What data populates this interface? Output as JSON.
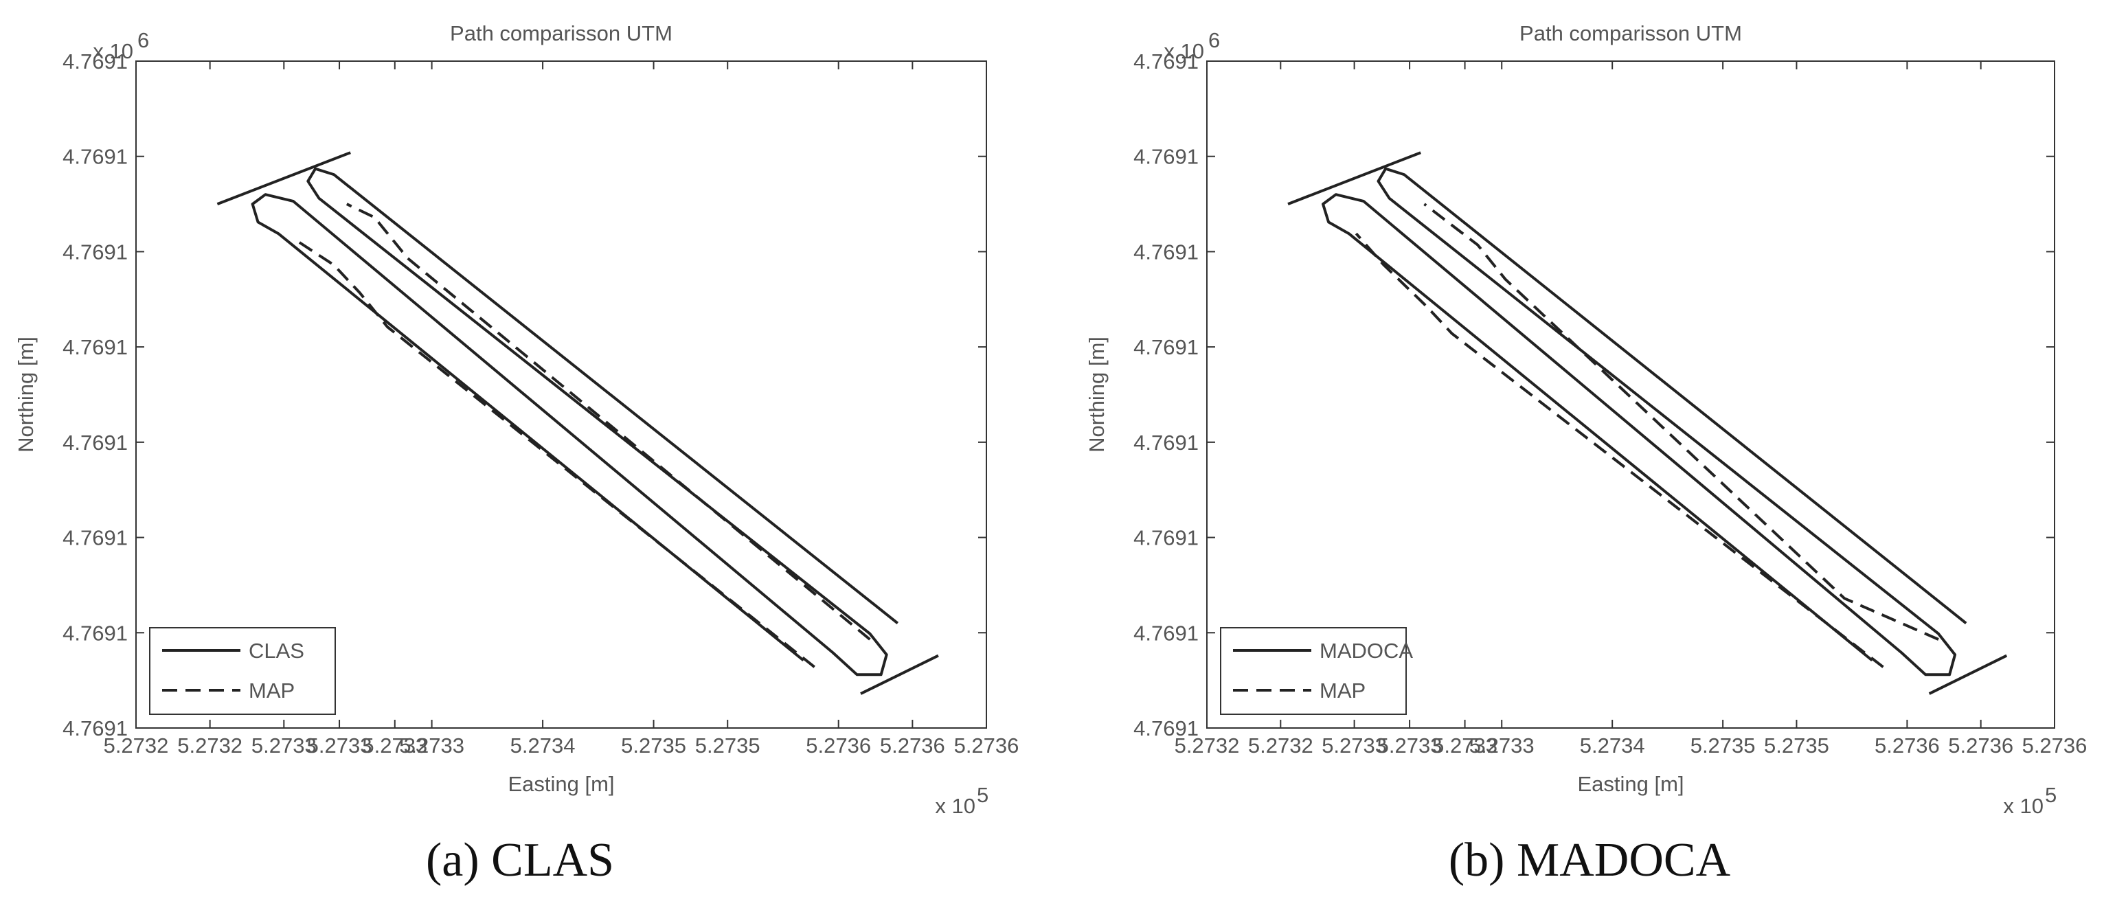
{
  "chart_data": [
    {
      "type": "line",
      "title": "Path comparisson UTM",
      "xlabel": "Easting [m]",
      "ylabel": "Northing [m]",
      "x_multiplier": "x 10",
      "x_exponent": "5",
      "y_multiplier": "x 10",
      "y_exponent": "6",
      "caption": "(a) CLAS",
      "legend": "lower left",
      "grid": false,
      "xlim": [
        5.27318,
        5.27364
      ],
      "ylim": [
        4.76906,
        4.76913
      ],
      "xticks": [
        {
          "value": 5.27318,
          "label": "5.2732"
        },
        {
          "value": 5.27322,
          "label": "5.2732"
        },
        {
          "value": 5.27326,
          "label": "5.2733"
        },
        {
          "value": 5.27329,
          "label": "5.2733"
        },
        {
          "value": 5.27332,
          "label": "5.2733"
        },
        {
          "value": 5.27334,
          "label": "5.2733"
        },
        {
          "value": 5.2734,
          "label": "5.2734"
        },
        {
          "value": 5.27346,
          "label": "5.2735"
        },
        {
          "value": 5.2735,
          "label": "5.2735"
        },
        {
          "value": 5.27356,
          "label": "5.2736"
        },
        {
          "value": 5.2736,
          "label": "5.2736"
        },
        {
          "value": 5.27364,
          "label": "5.2736"
        }
      ],
      "yticks": [
        {
          "value": 4.76906,
          "label": "4.7691"
        },
        {
          "value": 4.76907,
          "label": "4.7691"
        },
        {
          "value": 4.76908,
          "label": "4.7691"
        },
        {
          "value": 4.76909,
          "label": "4.7691"
        },
        {
          "value": 4.7691,
          "label": "4.7691"
        },
        {
          "value": 4.76911,
          "label": "4.7691"
        },
        {
          "value": 4.76912,
          "label": "4.7691"
        },
        {
          "value": 4.76913,
          "label": "4.7691"
        }
      ],
      "series": [
        {
          "name": "CLAS",
          "color": "#222222",
          "style": "solid",
          "x": [
            5.273592,
            5.273287,
            5.273277,
            5.273273,
            5.273279,
            5.273577,
            5.273586,
            5.273583,
            5.27357,
            5.273557,
            5.273265,
            5.27325,
            5.273243,
            5.273246,
            5.273257,
            5.273541,
            null,
            5.273224,
            5.273296,
            null,
            5.273572,
            5.273614
          ],
          "y": [
            4.769071,
            4.7691181,
            4.7691187,
            4.7691174,
            4.7691156,
            4.7690699,
            4.7690677,
            4.7690656,
            4.7690656,
            4.7690679,
            4.7691153,
            4.769116,
            4.769115,
            4.7691131,
            4.7691119,
            4.7690671,
            null,
            4.769115,
            4.7691204,
            null,
            4.7690636,
            4.7690676
          ]
        },
        {
          "name": "MAP",
          "color": "#222222",
          "style": "dashed",
          "x": [
            5.273547,
            5.273316,
            5.273301,
            5.273287,
            5.273265,
            null,
            5.273577,
            5.273327,
            5.273309,
            5.273294
          ],
          "y": [
            4.7690664,
            4.7691021,
            4.7691057,
            4.7691086,
            4.7691114,
            null,
            4.7690693,
            4.7691093,
            4.7691136,
            4.769115
          ]
        }
      ]
    },
    {
      "type": "line",
      "title": "Path comparisson UTM",
      "xlabel": "Easting [m]",
      "ylabel": "Northing [m]",
      "x_multiplier": "x 10",
      "x_exponent": "5",
      "y_multiplier": "x 10",
      "y_exponent": "6",
      "caption": "(b) MADOCA",
      "legend": "lower left",
      "grid": false,
      "xlim": [
        5.27318,
        5.27364
      ],
      "ylim": [
        4.76906,
        4.76913
      ],
      "xticks": [
        {
          "value": 5.27318,
          "label": "5.2732"
        },
        {
          "value": 5.27322,
          "label": "5.2732"
        },
        {
          "value": 5.27326,
          "label": "5.2733"
        },
        {
          "value": 5.27329,
          "label": "5.2733"
        },
        {
          "value": 5.27332,
          "label": "5.2733"
        },
        {
          "value": 5.27334,
          "label": "5.2733"
        },
        {
          "value": 5.2734,
          "label": "5.2734"
        },
        {
          "value": 5.27346,
          "label": "5.2735"
        },
        {
          "value": 5.2735,
          "label": "5.2735"
        },
        {
          "value": 5.27356,
          "label": "5.2736"
        },
        {
          "value": 5.2736,
          "label": "5.2736"
        },
        {
          "value": 5.27364,
          "label": "5.2736"
        }
      ],
      "yticks": [
        {
          "value": 4.76906,
          "label": "4.7691"
        },
        {
          "value": 4.76907,
          "label": "4.7691"
        },
        {
          "value": 4.76908,
          "label": "4.7691"
        },
        {
          "value": 4.76909,
          "label": "4.7691"
        },
        {
          "value": 4.7691,
          "label": "4.7691"
        },
        {
          "value": 4.76911,
          "label": "4.7691"
        },
        {
          "value": 4.76912,
          "label": "4.7691"
        },
        {
          "value": 4.76913,
          "label": "4.7691"
        }
      ],
      "series": [
        {
          "name": "MADOCA",
          "color": "#222222",
          "style": "solid",
          "x": [
            5.273592,
            5.273287,
            5.273277,
            5.273273,
            5.273279,
            5.273577,
            5.273586,
            5.273583,
            5.27357,
            5.273557,
            5.273265,
            5.27325,
            5.273243,
            5.273246,
            5.273257,
            5.273541,
            null,
            5.273224,
            5.273296,
            null,
            5.273572,
            5.273614
          ],
          "y": [
            4.769071,
            4.7691181,
            4.7691187,
            4.7691174,
            4.7691156,
            4.7690699,
            4.7690677,
            4.7690656,
            4.7690656,
            4.7690679,
            4.7691153,
            4.769116,
            4.769115,
            4.7691131,
            4.7691119,
            4.7690671,
            null,
            4.769115,
            4.7691204,
            null,
            4.7690636,
            4.7690676
          ]
        },
        {
          "name": "MAP",
          "color": "#222222",
          "style": "dashed",
          "x": [
            5.273547,
            5.273313,
            5.273299,
            5.273276,
            5.273261,
            null,
            5.273577,
            5.273526,
            5.273342,
            5.273327,
            5.273298
          ],
          "y": [
            4.7690664,
            4.7691014,
            4.7691043,
            4.7691086,
            4.7691119,
            null,
            4.7690693,
            4.7690736,
            4.7691071,
            4.7691107,
            4.769115
          ]
        }
      ]
    }
  ]
}
